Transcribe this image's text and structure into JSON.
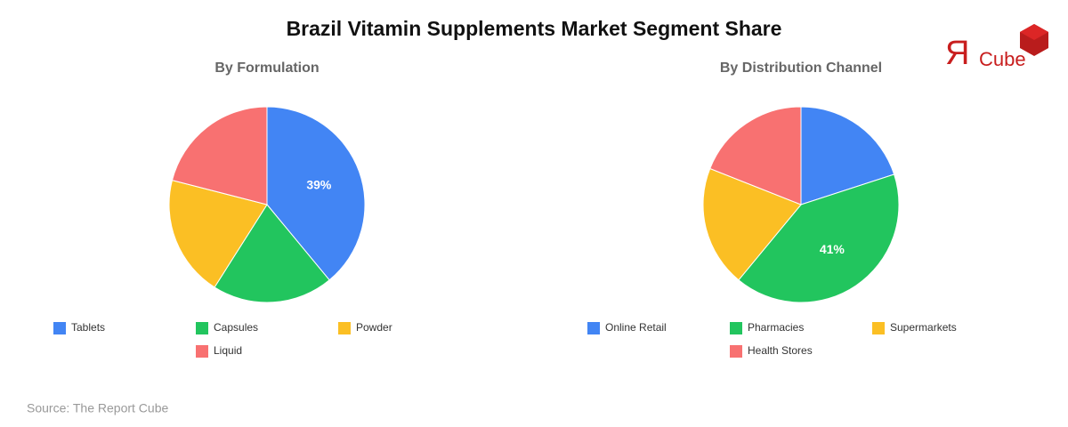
{
  "title": "Brazil Vitamin Supplements Market Segment Share",
  "logo": {
    "mark": "Я",
    "text": "Cube"
  },
  "source": "Source: The Report Cube",
  "chart_data": [
    {
      "type": "pie",
      "title": "By Formulation",
      "categories": [
        "Tablets",
        "Capsules",
        "Powder",
        "Liquid"
      ],
      "values": [
        39,
        20,
        20,
        21
      ],
      "value_labels": [
        "39%",
        null,
        null,
        null
      ],
      "colors": [
        "#4285f4",
        "#22c55e",
        "#fbbf24",
        "#f87171"
      ]
    },
    {
      "type": "pie",
      "title": "By Distribution Channel",
      "categories": [
        "Online Retail",
        "Pharmacies",
        "Supermarkets",
        "Health Stores"
      ],
      "values": [
        20,
        41,
        20,
        19
      ],
      "value_labels": [
        null,
        "41%",
        null,
        null
      ],
      "colors": [
        "#4285f4",
        "#22c55e",
        "#fbbf24",
        "#f87171"
      ]
    }
  ]
}
